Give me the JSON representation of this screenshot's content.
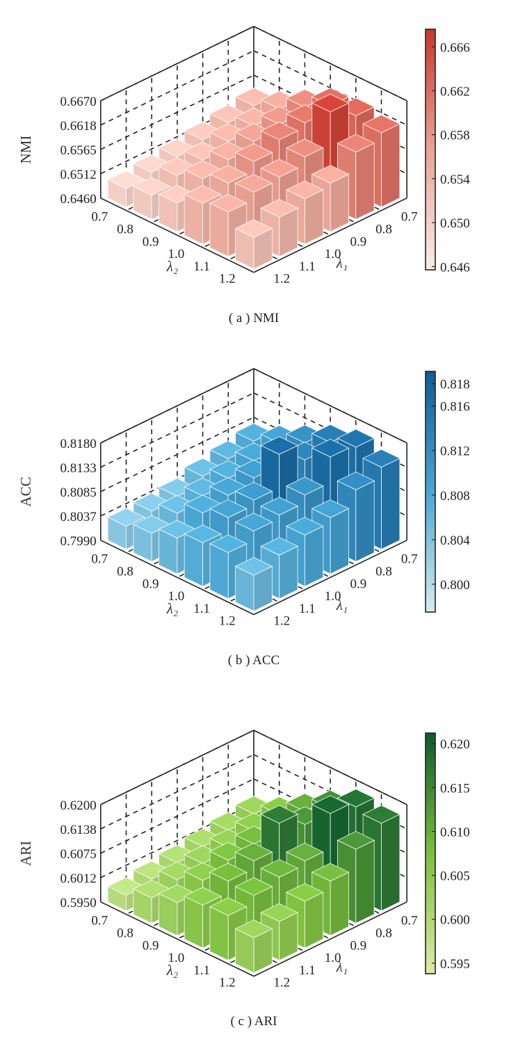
{
  "chart_data": [
    {
      "type": "bar3d",
      "caption": "( a ) NMI",
      "zlabel": "NMI",
      "xlabel": "λ₁",
      "ylabel": "λ₂",
      "x_ticks": [
        "0.7",
        "0.8",
        "0.9",
        "1.0",
        "1.1",
        "1.2"
      ],
      "y_ticks": [
        "0.7",
        "0.8",
        "0.9",
        "1.0",
        "1.1",
        "1.2"
      ],
      "z_ticks": [
        "0.6460",
        "0.6512",
        "0.6565",
        "0.6618",
        "0.6670"
      ],
      "zlim": [
        0.646,
        0.667
      ],
      "colorbar_ticks": [
        "0.646",
        "0.650",
        "0.654",
        "0.658",
        "0.662",
        "0.666"
      ],
      "colorbar_range": [
        0.6457,
        0.6676
      ],
      "colors": [
        "#f8ece6",
        "#e9a496",
        "#c8362a"
      ],
      "values_rows_lambda1_cols_lambda2": [
        [
          0.6545,
          0.6565,
          0.6595,
          0.6625,
          0.663,
          0.662
        ],
        [
          0.6535,
          0.6555,
          0.6585,
          0.6615,
          0.6665,
          0.6605
        ],
        [
          0.6525,
          0.6548,
          0.6575,
          0.6605,
          0.6595,
          0.6565
        ],
        [
          0.6515,
          0.6535,
          0.6562,
          0.6585,
          0.6578,
          0.6558
        ],
        [
          0.6508,
          0.6528,
          0.6548,
          0.6565,
          0.6572,
          0.6545
        ],
        [
          0.65,
          0.6512,
          0.6522,
          0.6548,
          0.6556,
          0.6528
        ]
      ]
    },
    {
      "type": "bar3d",
      "caption": "( b ) ACC",
      "zlabel": "ACC",
      "xlabel": "λ₁",
      "ylabel": "λ₂",
      "x_ticks": [
        "0.7",
        "0.8",
        "0.9",
        "1.0",
        "1.1",
        "1.2"
      ],
      "y_ticks": [
        "0.7",
        "0.8",
        "0.9",
        "1.0",
        "1.1",
        "1.2"
      ],
      "z_ticks": [
        "0.7990",
        "0.8037",
        "0.8085",
        "0.8133",
        "0.8180"
      ],
      "zlim": [
        0.799,
        0.818
      ],
      "colorbar_ticks": [
        "0.800",
        "0.804",
        "0.808",
        "0.812",
        "0.816",
        "0.818"
      ],
      "colorbar_range": [
        0.7975,
        0.8191
      ],
      "colors": [
        "#d6ecef",
        "#4aa6d2",
        "#0f5c96"
      ],
      "values_rows_lambda1_cols_lambda2": [
        [
          0.808,
          0.81,
          0.8125,
          0.815,
          0.8165,
          0.815
        ],
        [
          0.807,
          0.809,
          0.8115,
          0.814,
          0.817,
          0.813
        ],
        [
          0.806,
          0.808,
          0.8105,
          0.8175,
          0.812,
          0.81
        ],
        [
          0.8045,
          0.807,
          0.8095,
          0.811,
          0.8105,
          0.809
        ],
        [
          0.804,
          0.806,
          0.8085,
          0.81,
          0.8098,
          0.8075
        ],
        [
          0.8035,
          0.8045,
          0.806,
          0.8075,
          0.808,
          0.806
        ]
      ]
    },
    {
      "type": "bar3d",
      "caption": "( c ) ARI",
      "zlabel": "ARI",
      "xlabel": "λ₁",
      "ylabel": "λ₂",
      "x_ticks": [
        "0.7",
        "0.8",
        "0.9",
        "1.0",
        "1.1",
        "1.2"
      ],
      "y_ticks": [
        "0.7",
        "0.8",
        "0.9",
        "1.0",
        "1.1",
        "1.2"
      ],
      "z_ticks": [
        "0.5950",
        "0.6012",
        "0.6075",
        "0.6138",
        "0.6200"
      ],
      "zlim": [
        0.595,
        0.62
      ],
      "colorbar_ticks": [
        "0.595",
        "0.600",
        "0.605",
        "0.610",
        "0.615",
        "0.620"
      ],
      "colorbar_range": [
        0.5938,
        0.6212
      ],
      "colors": [
        "#dceba6",
        "#7cbf3c",
        "#0d5a2e"
      ],
      "values_rows_lambda1_cols_lambda2": [
        [
          0.604,
          0.607,
          0.611,
          0.615,
          0.6185,
          0.6175
        ],
        [
          0.603,
          0.606,
          0.61,
          0.614,
          0.62,
          0.614
        ],
        [
          0.602,
          0.605,
          0.609,
          0.6175,
          0.611,
          0.609
        ],
        [
          0.601,
          0.604,
          0.608,
          0.611,
          0.61,
          0.607
        ],
        [
          0.6,
          0.603,
          0.606,
          0.609,
          0.6085,
          0.605
        ],
        [
          0.599,
          0.6015,
          0.6035,
          0.606,
          0.6065,
          0.604
        ]
      ]
    }
  ]
}
